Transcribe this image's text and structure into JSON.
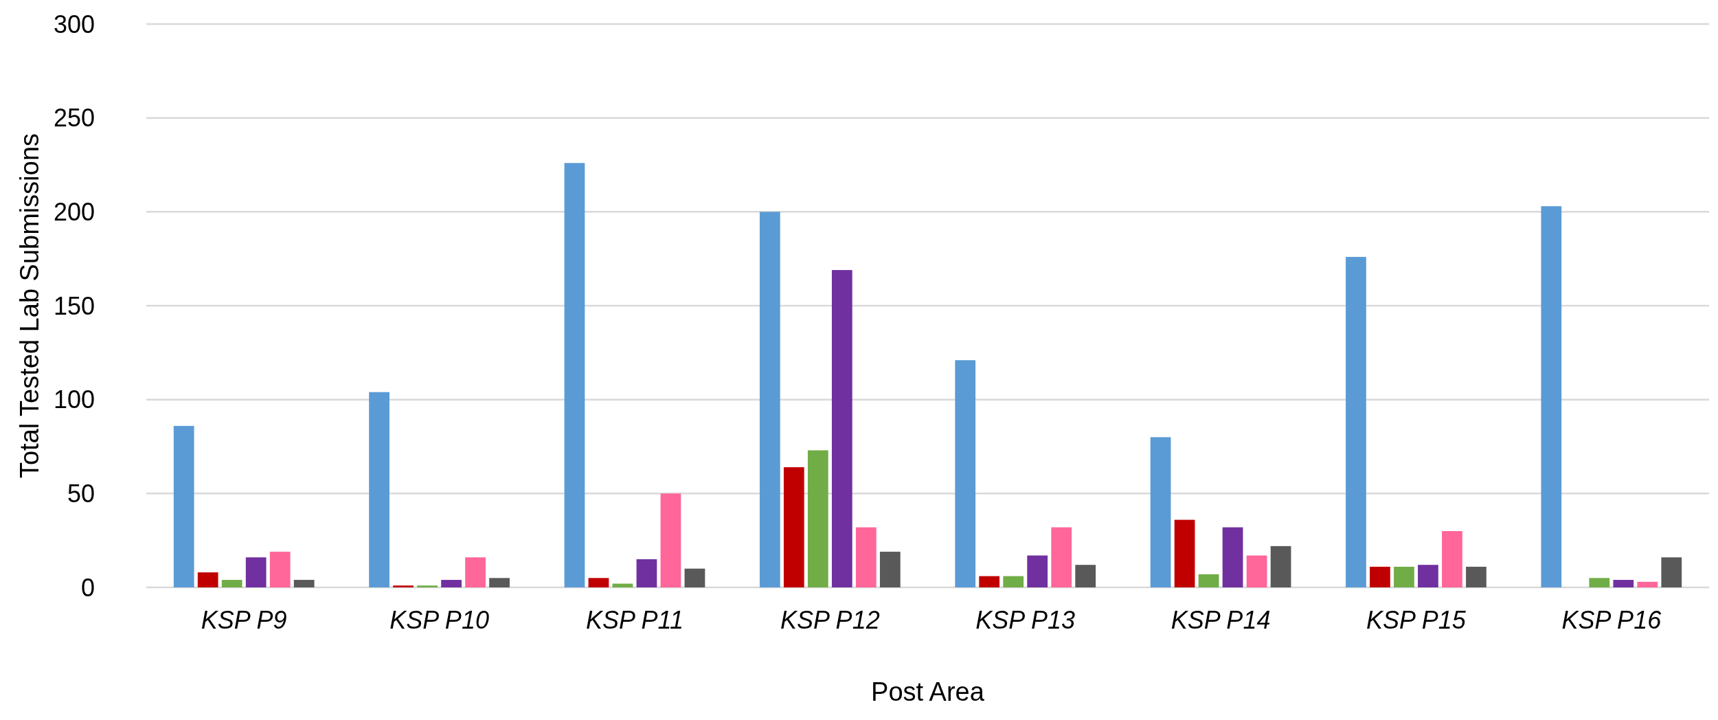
{
  "chart_data": {
    "type": "bar",
    "xlabel": "Post Area",
    "ylabel": "Total Tested Lab Submissions",
    "categories": [
      "KSP P9",
      "KSP P10",
      "KSP P11",
      "KSP P12",
      "KSP P13",
      "KSP P14",
      "KSP P15",
      "KSP P16"
    ],
    "series": [
      {
        "color": "#5b9bd5",
        "values": [
          86,
          104,
          226,
          200,
          121,
          80,
          176,
          203
        ]
      },
      {
        "color": "#c00000",
        "values": [
          8,
          1,
          5,
          64,
          6,
          36,
          11,
          0
        ]
      },
      {
        "color": "#70ad47",
        "values": [
          4,
          1,
          2,
          73,
          6,
          7,
          11,
          5
        ]
      },
      {
        "color": "#7030a0",
        "values": [
          16,
          4,
          15,
          169,
          17,
          32,
          12,
          4
        ]
      },
      {
        "color": "#ff6699",
        "values": [
          19,
          16,
          50,
          32,
          32,
          17,
          30,
          3
        ]
      },
      {
        "color": "#595959",
        "values": [
          4,
          5,
          10,
          19,
          12,
          22,
          11,
          16
        ]
      }
    ],
    "ylim": [
      0,
      300
    ],
    "yticks": [
      0,
      50,
      100,
      150,
      200,
      250,
      300
    ],
    "grid": "y"
  }
}
